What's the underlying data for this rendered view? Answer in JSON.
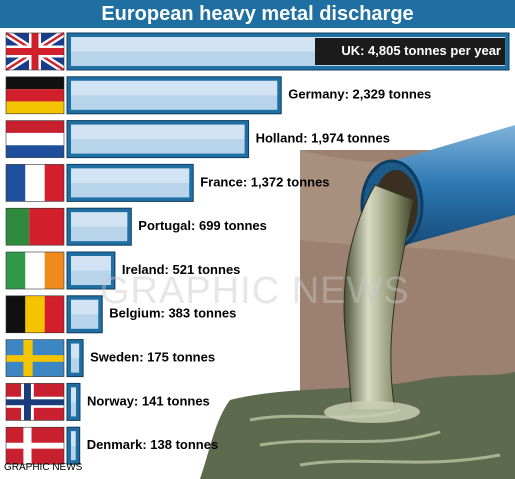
{
  "title": "European heavy metal discharge",
  "credit": "GRAPHIC NEWS",
  "watermark": "GRAPHIC NEWS",
  "colors": {
    "title_bg": "#1f6fa3",
    "bar_frame": "#1f6fa3",
    "bar_fill": "#b8d4ea"
  },
  "chart_data": {
    "type": "bar",
    "orientation": "horizontal",
    "title": "European heavy metal discharge",
    "unit": "tonnes",
    "categories": [
      "UK",
      "Germany",
      "Holland",
      "France",
      "Portugal",
      "Ireland",
      "Belgium",
      "Sweden",
      "Norway",
      "Denmark"
    ],
    "values": [
      4805,
      2329,
      1974,
      1372,
      699,
      521,
      383,
      175,
      141,
      138
    ],
    "data_labels": [
      "UK: 4,805 tonnes per year",
      "Germany: 2,329 tonnes",
      "Holland: 1,974 tonnes",
      "France: 1,372 tonnes",
      "Portugal: 699 tonnes",
      "Ireland: 521 tonnes",
      "Belgium: 383 tonnes",
      "Sweden: 175 tonnes",
      "Norway: 141 tonnes",
      "Denmark: 138 tonnes"
    ],
    "flags": [
      "uk-flag",
      "germany-flag",
      "holland-flag",
      "france-flag",
      "portugal-flag",
      "ireland-flag",
      "belgium-flag",
      "sweden-flag",
      "norway-flag",
      "denmark-flag"
    ],
    "grid": false,
    "legend": "none"
  }
}
